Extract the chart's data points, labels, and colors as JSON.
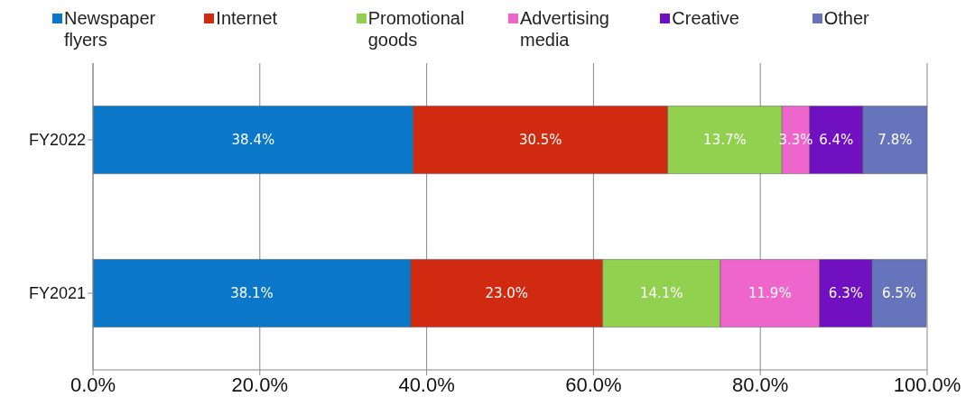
{
  "chart_data": {
    "type": "bar",
    "orientation": "horizontal",
    "stacked": true,
    "categories": [
      "FY2022",
      "FY2021"
    ],
    "series": [
      {
        "name": "Newspaper flyers",
        "color": "#0a77c9",
        "values": [
          38.4,
          38.1
        ],
        "value_labels": [
          "38.4%",
          "38.1%"
        ]
      },
      {
        "name": "Internet",
        "color": "#d02a10",
        "values": [
          30.5,
          23.0
        ],
        "value_labels": [
          "30.5%",
          "23.0%"
        ]
      },
      {
        "name": "Promotional goods",
        "color": "#92d050",
        "values": [
          13.7,
          14.1
        ],
        "value_labels": [
          "13.7%",
          "14.1%"
        ]
      },
      {
        "name": "Advertising media",
        "color": "#ee66cc",
        "values": [
          3.3,
          11.9
        ],
        "value_labels": [
          "3.3%",
          "11.9%"
        ]
      },
      {
        "name": "Creative",
        "color": "#7010c0",
        "values": [
          6.4,
          6.3
        ],
        "value_labels": [
          "6.4%",
          "6.3%"
        ]
      },
      {
        "name": "Other",
        "color": "#6674bb",
        "values": [
          7.8,
          6.5
        ],
        "value_labels": [
          "7.8%",
          "6.5%"
        ]
      }
    ],
    "xlim": [
      0,
      100
    ],
    "xticks": [
      {
        "value": 0,
        "label": "0.0%"
      },
      {
        "value": 20,
        "label": "20.0%"
      },
      {
        "value": 40,
        "label": "40.0%"
      },
      {
        "value": 60,
        "label": "60.0%"
      },
      {
        "value": 80,
        "label": "80.0%"
      },
      {
        "value": 100,
        "label": "100.0%"
      }
    ],
    "grid": "x",
    "legend": "top"
  }
}
